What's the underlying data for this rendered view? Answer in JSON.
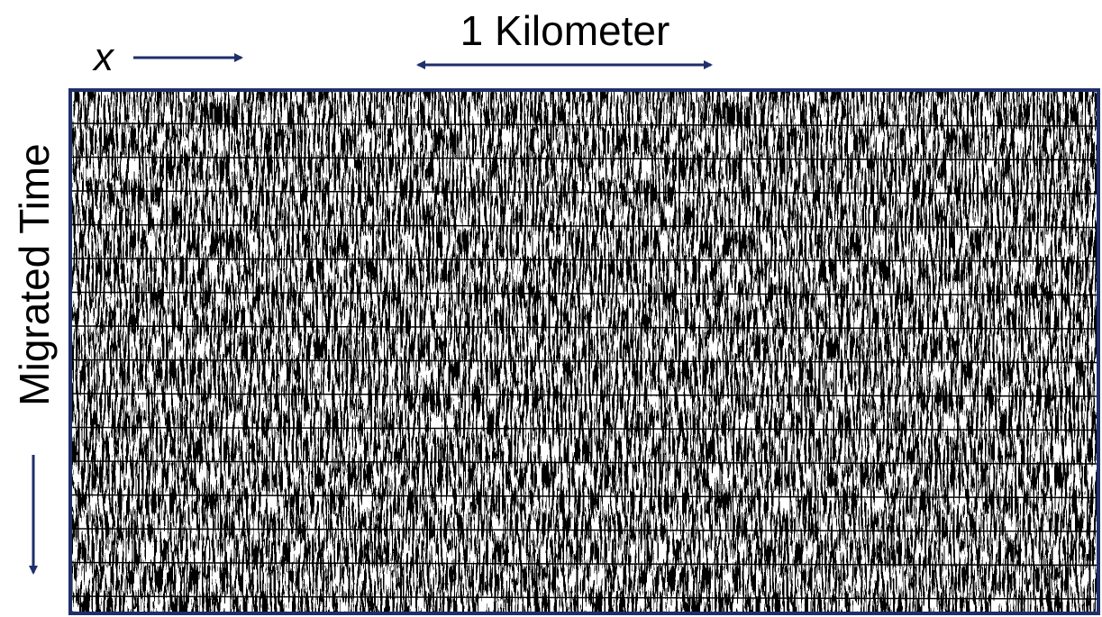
{
  "axis_x_label": "x",
  "scale_label": "1 Kilometer",
  "axis_y_label": "Migrated Time"
}
